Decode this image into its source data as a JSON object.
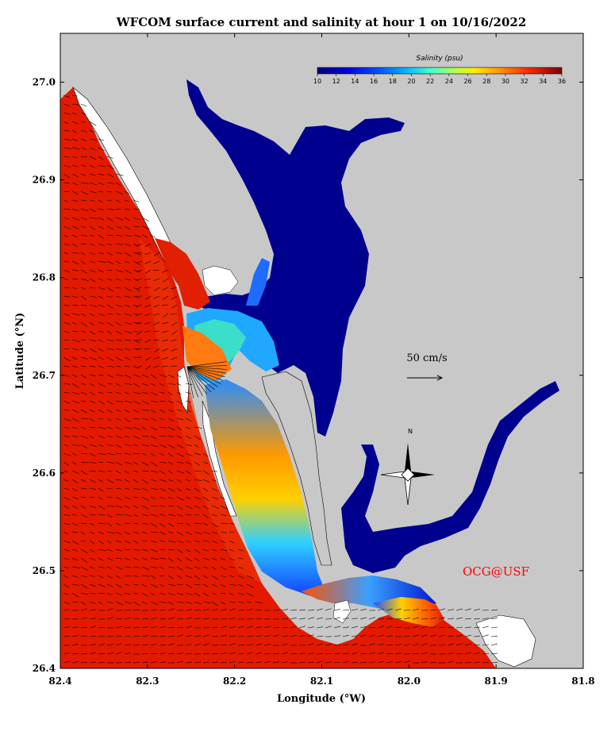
{
  "title": "WFCOM surface current and salinity at hour 1 on 10/16/2022",
  "x_axis": {
    "label": "Longitude (°W)",
    "ticks": [
      "82.4",
      "82.3",
      "82.2",
      "82.1",
      "82.0",
      "81.9",
      "81.8"
    ],
    "range": [
      82.4,
      81.8
    ]
  },
  "y_axis": {
    "label": "Latitude (°N)",
    "ticks": [
      "26.4",
      "26.5",
      "26.6",
      "26.7",
      "26.8",
      "26.9",
      "27.0"
    ],
    "range": [
      26.4,
      27.05
    ]
  },
  "colorbar": {
    "title": "Salinity (psu)",
    "ticks": [
      "10",
      "12",
      "14",
      "16",
      "18",
      "20",
      "22",
      "24",
      "26",
      "28",
      "30",
      "32",
      "34",
      "36"
    ],
    "range": [
      10,
      36
    ]
  },
  "scale_vector": {
    "label": "50 cm/s"
  },
  "compass": {
    "label": "N"
  },
  "credit": {
    "text": "OCG@USF",
    "color": "#ff0000"
  },
  "colors": {
    "land": "#c8c8c8",
    "dry_islands": "#ffffff",
    "high_salinity": "#e31a00",
    "low_salinity": "#00008f"
  }
}
